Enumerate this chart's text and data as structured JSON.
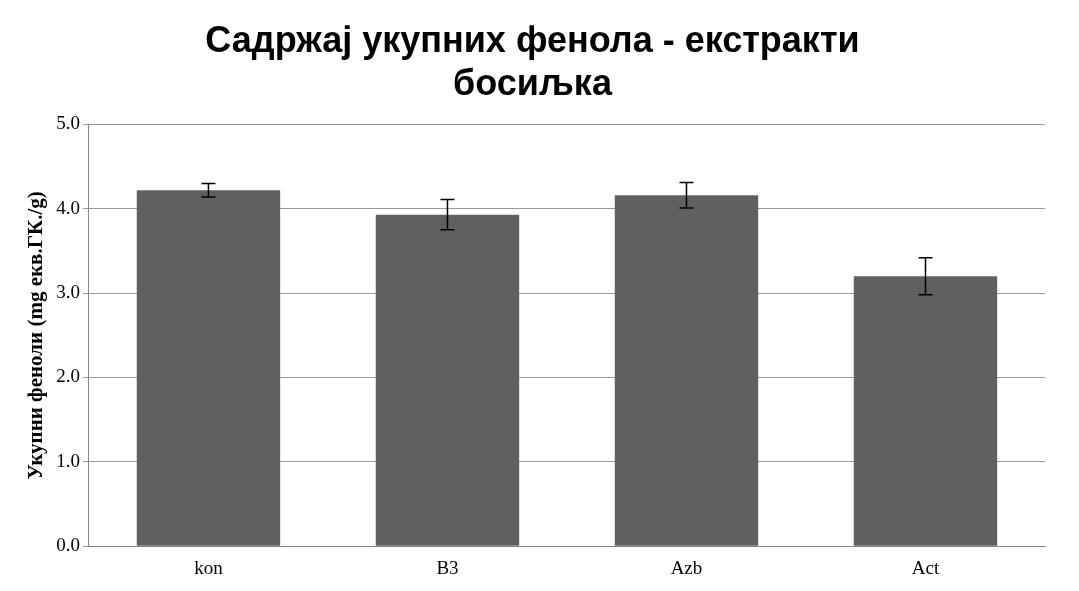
{
  "chart_data": {
    "type": "bar",
    "title": [
      "Садржај укупних фенола - екстракти",
      "босиљка"
    ],
    "ylabel": "Укупни феноли (mg екв.ГК./g)",
    "categories": [
      "kon",
      "B3",
      "Azb",
      "Act"
    ],
    "values": [
      4.22,
      3.93,
      4.16,
      3.2
    ],
    "errors": [
      0.08,
      0.18,
      0.15,
      0.22
    ],
    "color": "#606060",
    "ylim": [
      0,
      5
    ],
    "yticks": [
      {
        "value": 0,
        "label": "0.0"
      },
      {
        "value": 1,
        "label": "1.0"
      },
      {
        "value": 2,
        "label": "2.0"
      },
      {
        "value": 3,
        "label": "3.0"
      },
      {
        "value": 4,
        "label": "4.0"
      },
      {
        "value": 5,
        "label": "5.0"
      }
    ],
    "grid": "y",
    "legend": false
  }
}
